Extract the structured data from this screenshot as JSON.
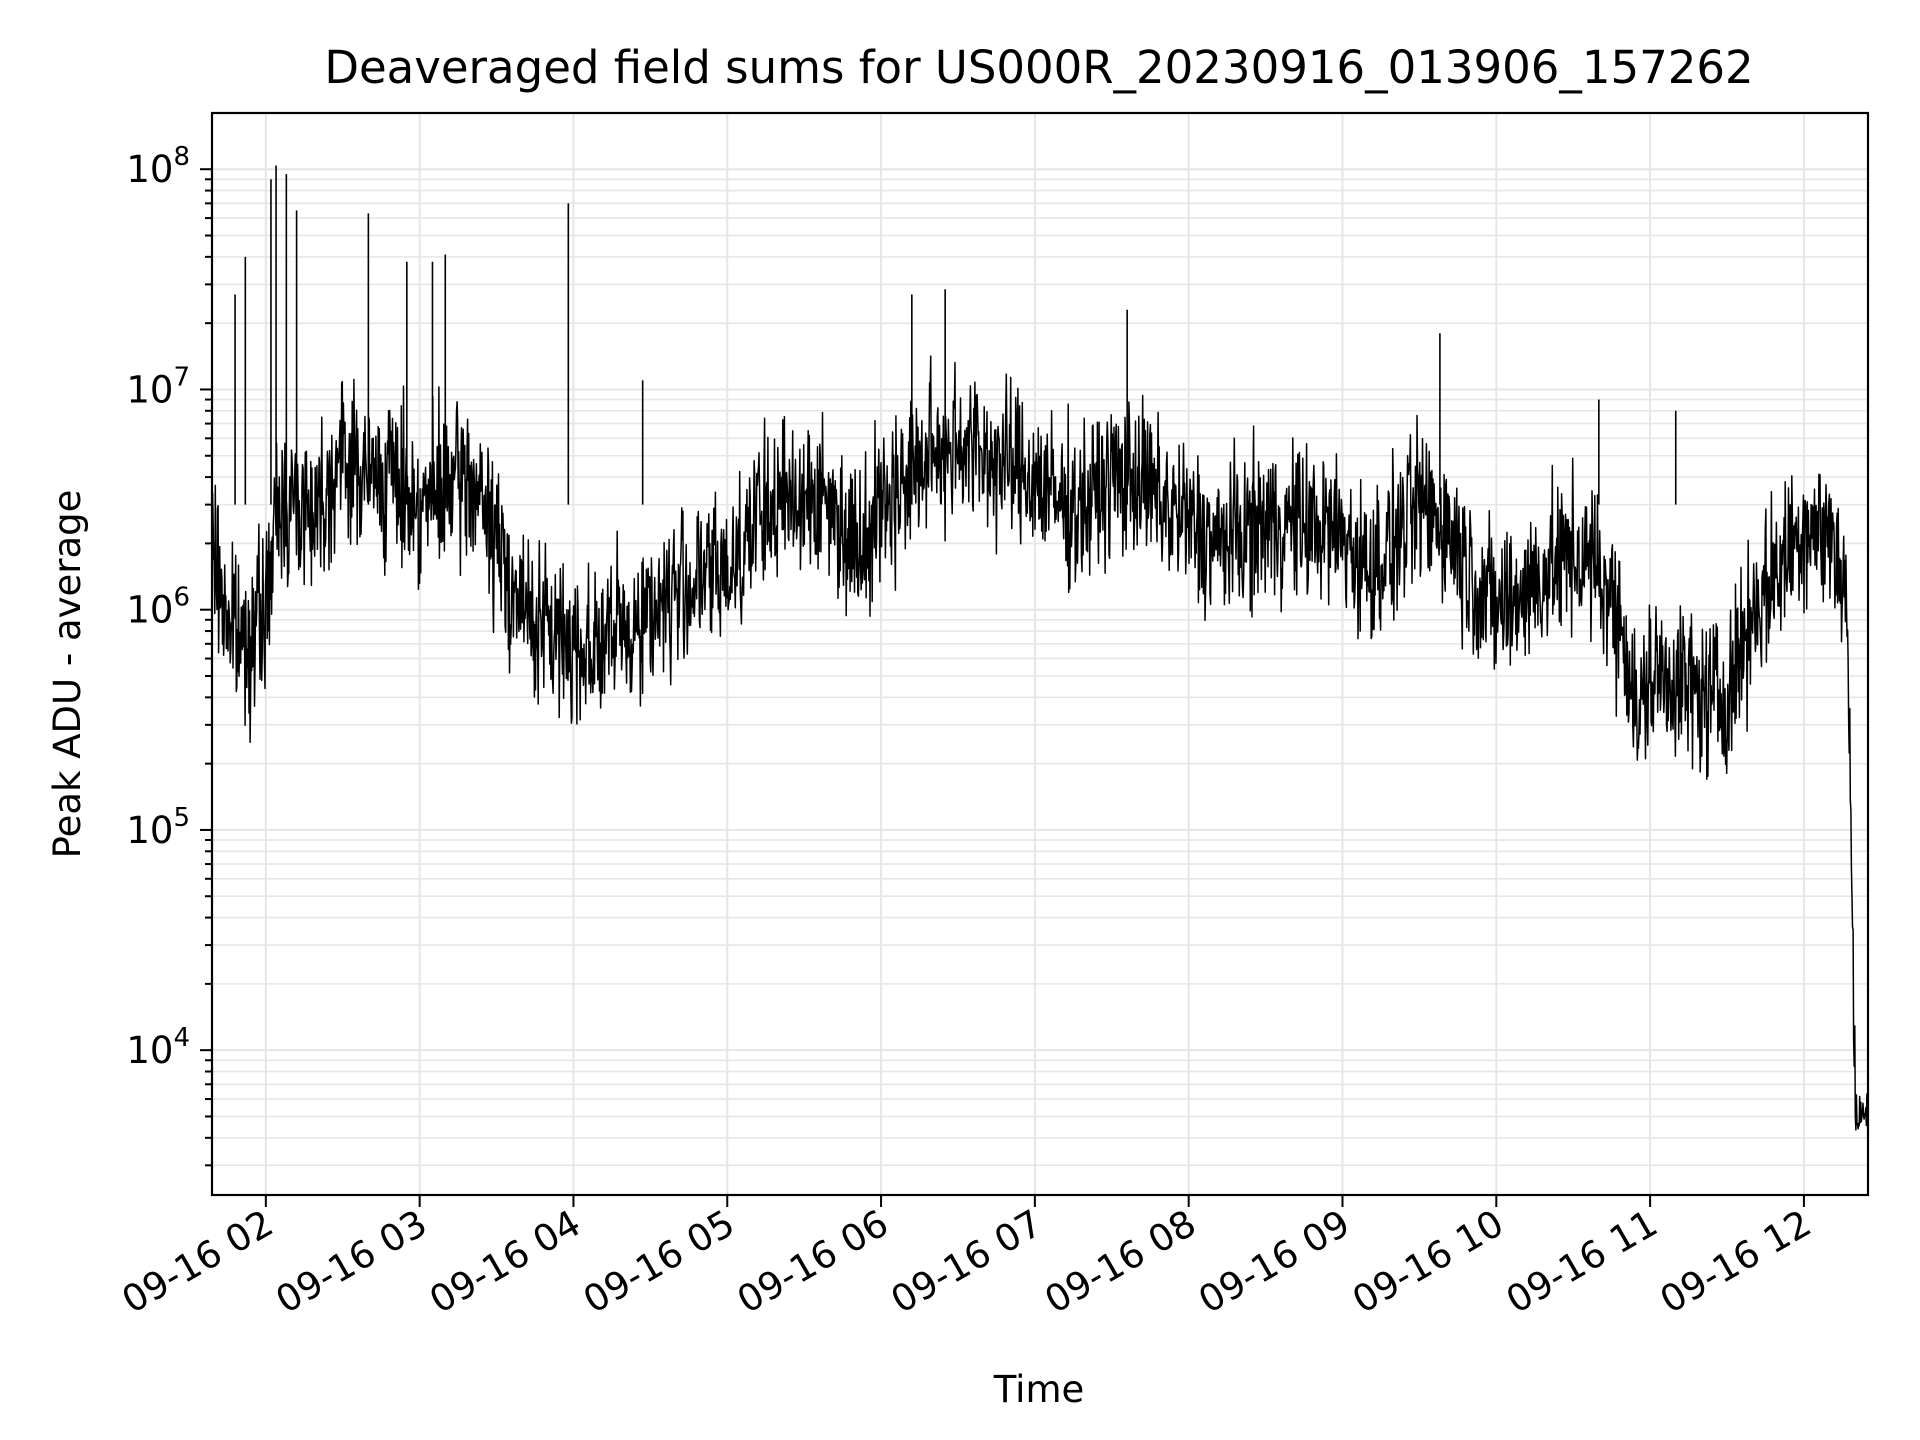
{
  "chart_data": {
    "type": "line",
    "title": "Deaveraged field sums for US000R_20230916_013906_157262",
    "xlabel": "Time",
    "ylabel": "Peak ADU - average",
    "y_scale": "log",
    "ylim": [
      2200,
      180000000
    ],
    "xlim": [
      "2023-09-16 01:39",
      "2023-09-16 12:25"
    ],
    "x_ticks": [
      "09-16 02",
      "09-16 03",
      "09-16 04",
      "09-16 05",
      "09-16 06",
      "09-16 07",
      "09-16 08",
      "09-16 09",
      "09-16 10",
      "09-16 11",
      "09-16 12"
    ],
    "x_tick_times": [
      "2023-09-16 02:00",
      "2023-09-16 03:00",
      "2023-09-16 04:00",
      "2023-09-16 05:00",
      "2023-09-16 06:00",
      "2023-09-16 07:00",
      "2023-09-16 08:00",
      "2023-09-16 09:00",
      "2023-09-16 10:00",
      "2023-09-16 11:00",
      "2023-09-16 12:00"
    ],
    "y_ticks": [
      10000,
      100000,
      1000000,
      10000000,
      100000000
    ],
    "y_tick_labels": [
      {
        "base": "10",
        "exp": "4"
      },
      {
        "base": "10",
        "exp": "5"
      },
      {
        "base": "10",
        "exp": "6"
      },
      {
        "base": "10",
        "exp": "7"
      },
      {
        "base": "10",
        "exp": "8"
      }
    ],
    "grid": true,
    "minor_grid": true,
    "line_color": "#000000",
    "grid_color": "#e6e6e6",
    "series": [
      {
        "x": [
          "2023-09-16 01:39",
          "2023-09-16 01:44",
          "2023-09-16 01:50",
          "2023-09-16 01:55",
          "2023-09-16 02:00",
          "2023-09-16 02:05",
          "2023-09-16 02:10",
          "2023-09-16 02:20",
          "2023-09-16 02:30",
          "2023-09-16 02:40",
          "2023-09-16 02:50",
          "2023-09-16 03:00",
          "2023-09-16 03:10",
          "2023-09-16 03:20",
          "2023-09-16 03:30",
          "2023-09-16 03:40",
          "2023-09-16 03:50",
          "2023-09-16 04:00",
          "2023-09-16 04:10",
          "2023-09-16 04:20",
          "2023-09-16 04:30",
          "2023-09-16 04:40",
          "2023-09-16 04:50",
          "2023-09-16 05:00",
          "2023-09-16 05:10",
          "2023-09-16 05:20",
          "2023-09-16 05:30",
          "2023-09-16 05:40",
          "2023-09-16 05:50",
          "2023-09-16 06:00",
          "2023-09-16 06:10",
          "2023-09-16 06:20",
          "2023-09-16 06:30",
          "2023-09-16 06:40",
          "2023-09-16 06:50",
          "2023-09-16 07:00",
          "2023-09-16 07:10",
          "2023-09-16 07:20",
          "2023-09-16 07:30",
          "2023-09-16 07:40",
          "2023-09-16 07:50",
          "2023-09-16 08:00",
          "2023-09-16 08:10",
          "2023-09-16 08:20",
          "2023-09-16 08:30",
          "2023-09-16 08:40",
          "2023-09-16 08:50",
          "2023-09-16 09:00",
          "2023-09-16 09:10",
          "2023-09-16 09:20",
          "2023-09-16 09:30",
          "2023-09-16 09:40",
          "2023-09-16 09:50",
          "2023-09-16 10:00",
          "2023-09-16 10:10",
          "2023-09-16 10:20",
          "2023-09-16 10:30",
          "2023-09-16 10:40",
          "2023-09-16 10:50",
          "2023-09-16 10:55",
          "2023-09-16 11:00",
          "2023-09-16 11:10",
          "2023-09-16 11:20",
          "2023-09-16 11:30",
          "2023-09-16 11:40",
          "2023-09-16 11:50",
          "2023-09-16 12:00",
          "2023-09-16 12:10",
          "2023-09-16 12:15",
          "2023-09-16 12:17",
          "2023-09-16 12:20",
          "2023-09-16 12:25"
        ],
        "y": [
          2000000,
          1000000,
          700000,
          800000,
          1000000,
          3000000,
          3000000,
          3000000,
          5000000,
          4000000,
          4000000,
          3000000,
          3500000,
          4000000,
          2000000,
          1000000,
          800000,
          700000,
          700000,
          800000,
          1000000,
          1200000,
          1400000,
          1500000,
          2500000,
          3000000,
          3500000,
          3000000,
          2000000,
          3000000,
          4000000,
          5000000,
          6000000,
          5000000,
          4500000,
          4000000,
          3000000,
          3000000,
          4000000,
          4000000,
          3000000,
          2500000,
          2000000,
          2200000,
          2500000,
          2500000,
          2400000,
          2200000,
          1500000,
          2000000,
          3000000,
          2500000,
          1500000,
          1000000,
          1200000,
          1500000,
          1800000,
          1500000,
          800000,
          300000,
          500000,
          500000,
          400000,
          400000,
          1000000,
          1500000,
          2500000,
          2200000,
          1500000,
          1000000,
          5000,
          5000
        ],
        "noise_amplitude_decades": 0.35
      }
    ],
    "spikes": [
      {
        "x": "2023-09-16 01:48",
        "y": 27000000
      },
      {
        "x": "2023-09-16 01:52",
        "y": 40000000
      },
      {
        "x": "2023-09-16 02:02",
        "y": 90000000
      },
      {
        "x": "2023-09-16 02:04",
        "y": 104000000
      },
      {
        "x": "2023-09-16 02:08",
        "y": 95000000
      },
      {
        "x": "2023-09-16 02:12",
        "y": 65000000
      },
      {
        "x": "2023-09-16 02:40",
        "y": 63000000
      },
      {
        "x": "2023-09-16 02:55",
        "y": 38000000
      },
      {
        "x": "2023-09-16 03:05",
        "y": 38000000
      },
      {
        "x": "2023-09-16 03:10",
        "y": 41000000
      },
      {
        "x": "2023-09-16 03:58",
        "y": 70000000
      },
      {
        "x": "2023-09-16 04:27",
        "y": 11000000
      },
      {
        "x": "2023-09-16 06:12",
        "y": 27000000
      },
      {
        "x": "2023-09-16 06:25",
        "y": 28500000
      },
      {
        "x": "2023-09-16 07:36",
        "y": 23000000
      },
      {
        "x": "2023-09-16 09:38",
        "y": 18000000
      },
      {
        "x": "2023-09-16 10:40",
        "y": 9000000
      },
      {
        "x": "2023-09-16 11:10",
        "y": 8000000
      }
    ]
  }
}
